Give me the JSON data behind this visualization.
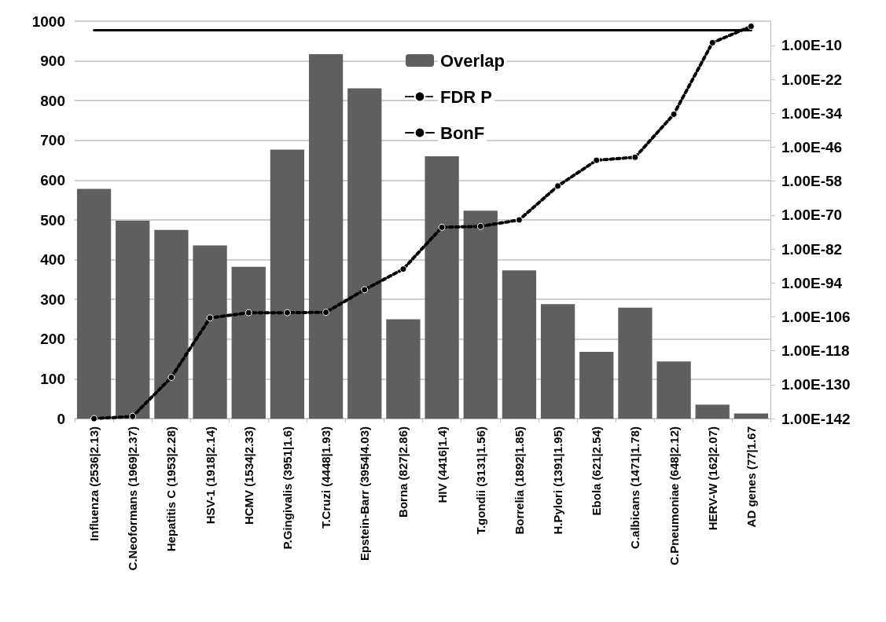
{
  "chart_data": {
    "type": "bar",
    "categories": [
      "Influenza (2536|2.13)",
      "C.Neoformans (1969|2.37)",
      "Hepatitis C (1953|2.28)",
      "HSV-1 (1918|2.14)",
      "HCMV (1534|2.33)",
      "P.Gingivalis (3951|1.6)",
      "T.Cruzi (4448|1.93)",
      "Epstein-Barr (3954|4.03)",
      "Borna (827|2.86)",
      "HIV (4416|1.4)",
      "T.gondii (3131|1.56)",
      "Borrelia (1892|1.85)",
      "H.Pylori (1391|1.95)",
      "Ebola (621|2.54)",
      "C.albicans (1471|1.78)",
      "C.Pneumoniae (648|2.12)",
      "HERV-W (162|2.07)",
      "AD genes (77|1.67"
    ],
    "series": [
      {
        "name": "Overlap",
        "color": "#5f5f5f",
        "values": [
          578,
          498,
          475,
          436,
          382,
          677,
          917,
          831,
          250,
          660,
          523,
          373,
          288,
          168,
          279,
          144,
          35,
          13
        ]
      },
      {
        "name": "FDR P",
        "type": "line",
        "axis": "y2",
        "color": "#000000",
        "marker": "circle",
        "line_style": "dotted",
        "values": [
          1e-142,
          6e-142,
          4e-128,
          4e-107,
          3e-105,
          3e-105,
          4e-105,
          4e-97,
          8e-90,
          5e-75,
          1e-74,
          2e-72,
          2e-60,
          2.5e-51,
          3e-50,
          5e-35,
          1e-09,
          0.0006
        ]
      },
      {
        "name": "BonF",
        "type": "line",
        "axis": "y2",
        "color": "#000000",
        "marker": "none",
        "line_style": "solid",
        "values": [
          2.5e-05,
          2.5e-05,
          2.5e-05,
          2.5e-05,
          2.5e-05,
          2.5e-05,
          2.5e-05,
          2.5e-05,
          2.5e-05,
          2.5e-05,
          2.5e-05,
          2.5e-05,
          2.5e-05,
          2.5e-05,
          2.5e-05,
          2.5e-05,
          2.5e-05,
          2.5e-05
        ]
      }
    ],
    "ylim": [
      0,
      1000
    ],
    "yticks": [
      0,
      100,
      200,
      300,
      400,
      500,
      600,
      700,
      800,
      900,
      1000
    ],
    "y2lim": [
      1e-142,
      0.04
    ],
    "y2ticks": [
      {
        "value": 1e-142,
        "label": "1.00E-142"
      },
      {
        "value": 1e-130,
        "label": "1.00E-130"
      },
      {
        "value": 1e-118,
        "label": "1.00E-118"
      },
      {
        "value": 1e-106,
        "label": "1.00E-106"
      },
      {
        "value": 1e-94,
        "label": "1.00E-94"
      },
      {
        "value": 1e-82,
        "label": "1.00E-82"
      },
      {
        "value": 1e-70,
        "label": "1.00E-70"
      },
      {
        "value": 1e-58,
        "label": "1.00E-58"
      },
      {
        "value": 1e-46,
        "label": "1.00E-46"
      },
      {
        "value": 1e-34,
        "label": "1.00E-34"
      },
      {
        "value": 1e-22,
        "label": "1.00E-22"
      },
      {
        "value": 1e-10,
        "label": "1.00E-10"
      }
    ],
    "log": "y2",
    "grid": "y",
    "legend": "top"
  }
}
